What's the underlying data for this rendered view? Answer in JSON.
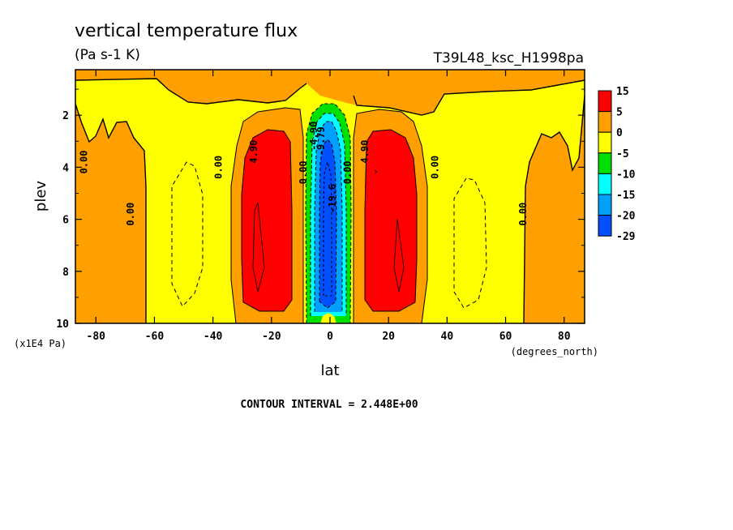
{
  "chart_data": {
    "type": "heatmap",
    "title": "vertical temperature flux",
    "subtitle": "(Pa s-1 K)",
    "dataset": "T39L48_ksc_H1998pa",
    "xlabel": "lat",
    "xunits": "(degrees_north)",
    "ylabel": "plev",
    "yunits": "(x1E4 Pa)",
    "xlim": [
      -87,
      87
    ],
    "ylim": [
      10,
      0.25
    ],
    "xticks": [
      "-80",
      "-60",
      "-40",
      "-20",
      "0",
      "20",
      "40",
      "60",
      "80"
    ],
    "xtick_values": [
      -80,
      -60,
      -40,
      -20,
      0,
      20,
      40,
      60,
      80
    ],
    "yticks": [
      "2",
      "4",
      "6",
      "8",
      "10"
    ],
    "ytick_values": [
      2,
      4,
      6,
      8,
      10
    ],
    "footer": "CONTOUR INTERVAL = 2.448E+00",
    "contour_interval": 2.448,
    "colorbar": {
      "labels": [
        "15",
        "5",
        "0",
        "-5",
        "-10",
        "-15",
        "-20",
        "-29"
      ],
      "colors": [
        "#ff0000",
        "#ff9f00",
        "#ffff00",
        "#00e000",
        "#00ffff",
        "#00a0ff",
        "#0050ff"
      ]
    },
    "contour_labels": [
      {
        "text": "0.00",
        "lat": -83,
        "plev": 3.8
      },
      {
        "text": "0.00",
        "lat": -67,
        "plev": 5.8
      },
      {
        "text": "0.00",
        "lat": -37,
        "plev": 4.0
      },
      {
        "text": "4.90",
        "lat": -25,
        "plev": 3.4
      },
      {
        "text": "0.00",
        "lat": -8,
        "plev": 4.2
      },
      {
        "text": "-4.90",
        "lat": -4.5,
        "plev": 2.8
      },
      {
        "text": "-9.79",
        "lat": -2,
        "plev": 3.0
      },
      {
        "text": "-19.6",
        "lat": 2,
        "plev": 5.2
      },
      {
        "text": "0.00",
        "lat": 7,
        "plev": 4.2
      },
      {
        "text": "4.90",
        "lat": 13,
        "plev": 3.4
      },
      {
        "text": "0.00",
        "lat": 37,
        "plev": 4.0
      },
      {
        "text": "0.00",
        "lat": 67,
        "plev": 5.8
      }
    ]
  }
}
